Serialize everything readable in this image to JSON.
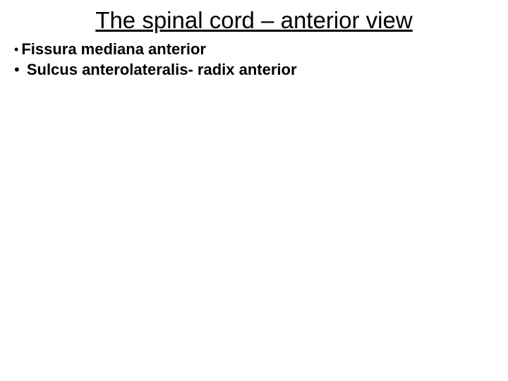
{
  "slide": {
    "title": "The spinal cord – anterior view",
    "bullets": [
      {
        "marker": "•",
        "text": "Fissura mediana anterior"
      },
      {
        "marker": "•",
        "text": "Sulcus anterolateralis- radix anterior"
      }
    ]
  },
  "style": {
    "background_color": "#ffffff",
    "text_color": "#000000",
    "title_fontsize": 33,
    "title_underline": true,
    "bullet_fontsize": 22,
    "bullet_bold": true,
    "font_family": "Arial"
  }
}
